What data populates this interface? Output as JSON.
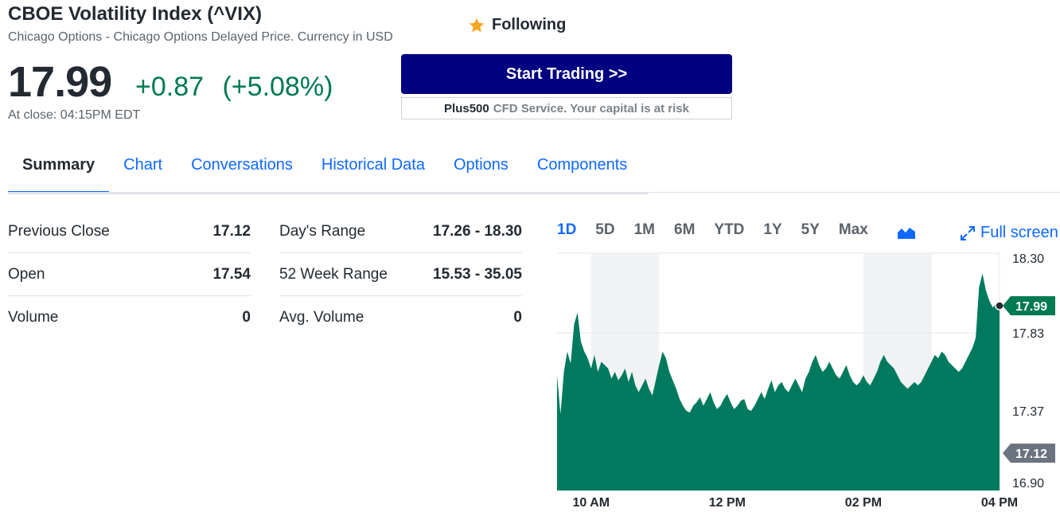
{
  "quote": {
    "title": "CBOE Volatility Index (^VIX)",
    "subtitle": "Chicago Options - Chicago Options Delayed Price. Currency in USD",
    "follow_label": "Following",
    "price": "17.99",
    "change": "+0.87",
    "change_pct": "(+5.08%)",
    "close_time": "At close: 04:15PM EDT"
  },
  "ad": {
    "button_label": "Start Trading >>",
    "brand": "Plus500",
    "risk_text": "CFD Service. Your capital is at risk"
  },
  "tabs": [
    {
      "label": "Summary",
      "active": true
    },
    {
      "label": "Chart"
    },
    {
      "label": "Conversations"
    },
    {
      "label": "Historical Data"
    },
    {
      "label": "Options"
    },
    {
      "label": "Components"
    }
  ],
  "stats": {
    "left": [
      {
        "label": "Previous Close",
        "value": "17.12"
      },
      {
        "label": "Open",
        "value": "17.54"
      },
      {
        "label": "Volume",
        "value": "0"
      }
    ],
    "right": [
      {
        "label": "Day's Range",
        "value": "17.26 - 18.30"
      },
      {
        "label": "52 Week Range",
        "value": "15.53 - 35.05"
      },
      {
        "label": "Avg. Volume",
        "value": "0"
      }
    ]
  },
  "chart_controls": {
    "ranges": [
      "1D",
      "5D",
      "1M",
      "6M",
      "YTD",
      "1Y",
      "5Y",
      "Max"
    ],
    "active_range": "1D",
    "chart_type_icon": "area-chart-icon",
    "fullscreen_label": "Full screen"
  },
  "colors": {
    "accent": "#0f69ff",
    "positive": "#007a52",
    "area_fill": "#007a5e",
    "ad_button": "#000080"
  },
  "chart_data": {
    "type": "area",
    "x_ticks": [
      "10 AM",
      "12 PM",
      "02 PM",
      "04 PM"
    ],
    "y_ticks": [
      "18.30",
      "17.83",
      "17.37",
      "16.90"
    ],
    "ylim": [
      16.9,
      18.3
    ],
    "current_price_label": "17.99",
    "previous_close_label": "17.12",
    "current_price": 17.99,
    "previous_close": 17.12,
    "grid": "horizontal",
    "series": [
      {
        "hours": [
          9.5,
          9.55,
          9.6,
          9.65,
          9.7,
          9.75,
          9.8,
          9.85,
          9.9,
          9.95,
          10,
          10.05,
          10.1,
          10.15,
          10.2,
          10.25,
          10.3,
          10.35,
          10.4,
          10.45,
          10.5,
          10.55,
          10.6,
          10.65,
          10.7,
          10.75,
          10.8,
          10.85,
          10.9,
          10.95,
          11,
          11.05,
          11.1,
          11.15,
          11.2,
          11.25,
          11.3,
          11.35,
          11.4,
          11.45,
          11.5,
          11.55,
          11.6,
          11.65,
          11.7,
          11.75,
          11.8,
          11.85,
          11.9,
          11.95,
          12,
          12.05,
          12.1,
          12.15,
          12.2,
          12.25,
          12.3,
          12.35,
          12.4,
          12.45,
          12.5,
          12.55,
          12.6,
          12.65,
          12.7,
          12.75,
          12.8,
          12.85,
          12.9,
          12.95,
          13,
          13.05,
          13.1,
          13.15,
          13.2,
          13.25,
          13.3,
          13.35,
          13.4,
          13.45,
          13.5,
          13.55,
          13.6,
          13.65,
          13.7,
          13.75,
          13.8,
          13.85,
          13.9,
          13.95,
          14,
          14.05,
          14.1,
          14.15,
          14.2,
          14.25,
          14.3,
          14.35,
          14.4,
          14.45,
          14.5,
          14.55,
          14.6,
          14.65,
          14.7,
          14.75,
          14.8,
          14.85,
          14.9,
          14.95,
          15,
          15.05,
          15.1,
          15.15,
          15.2,
          15.25,
          15.3,
          15.35,
          15.4,
          15.45,
          15.5,
          15.55,
          15.6,
          15.65,
          15.7,
          15.75,
          15.8,
          15.85,
          15.9,
          15.95,
          16
        ],
        "values": [
          17.58,
          17.35,
          17.6,
          17.72,
          17.65,
          17.88,
          17.95,
          17.78,
          17.72,
          17.68,
          17.62,
          17.7,
          17.6,
          17.66,
          17.64,
          17.62,
          17.56,
          17.6,
          17.55,
          17.58,
          17.62,
          17.54,
          17.6,
          17.52,
          17.48,
          17.52,
          17.56,
          17.5,
          17.46,
          17.55,
          17.64,
          17.72,
          17.68,
          17.6,
          17.55,
          17.5,
          17.44,
          17.4,
          17.37,
          17.36,
          17.4,
          17.42,
          17.45,
          17.4,
          17.44,
          17.48,
          17.42,
          17.38,
          17.4,
          17.44,
          17.47,
          17.42,
          17.38,
          17.4,
          17.43,
          17.44,
          17.38,
          17.37,
          17.4,
          17.44,
          17.48,
          17.44,
          17.5,
          17.55,
          17.48,
          17.52,
          17.54,
          17.5,
          17.48,
          17.52,
          17.56,
          17.52,
          17.48,
          17.56,
          17.6,
          17.66,
          17.7,
          17.64,
          17.6,
          17.62,
          17.66,
          17.62,
          17.58,
          17.56,
          17.6,
          17.64,
          17.58,
          17.54,
          17.52,
          17.54,
          17.58,
          17.54,
          17.52,
          17.56,
          17.6,
          17.66,
          17.7,
          17.66,
          17.64,
          17.62,
          17.58,
          17.54,
          17.52,
          17.5,
          17.52,
          17.54,
          17.52,
          17.54,
          17.58,
          17.62,
          17.66,
          17.7,
          17.68,
          17.72,
          17.7,
          17.66,
          17.64,
          17.62,
          17.6,
          17.62,
          17.66,
          17.7,
          17.74,
          17.8,
          18.1,
          18.18,
          18.08,
          18.02,
          17.98,
          18.0,
          17.99
        ]
      }
    ]
  }
}
